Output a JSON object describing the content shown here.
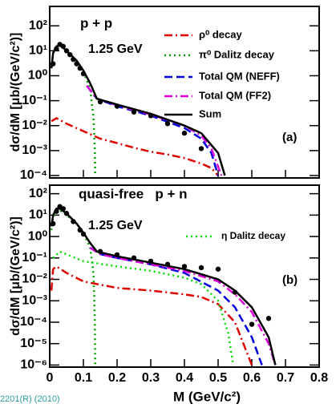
{
  "chart_data": [
    {
      "type": "line",
      "label": "(a)",
      "texts": [
        "p + p",
        "1.25 GeV"
      ],
      "ylabel": "dσ/dM [μb/(GeV/c²)]",
      "log_y": true,
      "xlim": [
        0,
        0.8
      ],
      "ylim": [
        8e-05,
        600
      ],
      "yticks": [
        {
          "value": 0.0001,
          "label": "10⁻⁴"
        },
        {
          "value": 0.001,
          "label": "10⁻³"
        },
        {
          "value": 0.01,
          "label": "10⁻²"
        },
        {
          "value": 0.1,
          "label": "10⁻¹"
        },
        {
          "value": 1,
          "label": "10⁰"
        },
        {
          "value": 10,
          "label": "10¹"
        },
        {
          "value": 100,
          "label": "10²"
        }
      ],
      "series": [
        {
          "name": "ρ⁰ decay",
          "color": "#e00000",
          "style": "dashdot",
          "x": [
            0.005,
            0.02,
            0.05,
            0.1,
            0.15,
            0.2,
            0.25,
            0.3,
            0.35,
            0.4,
            0.45,
            0.48,
            0.5
          ],
          "values": [
            0.015,
            0.02,
            0.012,
            0.006,
            0.003,
            0.002,
            0.0013,
            0.0009,
            0.0007,
            0.0005,
            0.0003,
            0.0002,
            0.0001
          ]
        },
        {
          "name": "π⁰ Dalitz decay",
          "color": "#00a000",
          "style": "dotted",
          "x": [
            0.005,
            0.01,
            0.02,
            0.03,
            0.05,
            0.08,
            0.1,
            0.12,
            0.13,
            0.134,
            0.135
          ],
          "values": [
            2,
            8,
            15,
            17,
            10,
            4,
            1.5,
            0.3,
            0.02,
            0.001,
            0.0001
          ]
        },
        {
          "name": "Total QM (NEFF)",
          "color": "#0000e0",
          "style": "dashed",
          "x": [
            0.11,
            0.14,
            0.2,
            0.3,
            0.4,
            0.45,
            0.48,
            0.5
          ],
          "values": [
            0.4,
            0.12,
            0.06,
            0.025,
            0.008,
            0.003,
            0.0008,
            0.0001
          ]
        },
        {
          "name": "Total QM (FF2)",
          "color": "#e000e0",
          "style": "dashdot",
          "x": [
            0.11,
            0.14,
            0.2,
            0.3,
            0.4,
            0.45,
            0.48,
            0.51
          ],
          "values": [
            0.4,
            0.12,
            0.065,
            0.028,
            0.01,
            0.004,
            0.0012,
            0.0001
          ]
        },
        {
          "name": "Sum",
          "color": "#000000",
          "style": "solid",
          "x": [
            0.005,
            0.01,
            0.02,
            0.03,
            0.05,
            0.08,
            0.1,
            0.12,
            0.14,
            0.2,
            0.3,
            0.4,
            0.45,
            0.5,
            0.52
          ],
          "values": [
            2,
            8,
            15,
            17,
            10,
            4,
            1.6,
            0.5,
            0.12,
            0.07,
            0.03,
            0.01,
            0.005,
            0.0008,
            0.0001
          ]
        }
      ],
      "points": {
        "x": [
          0.01,
          0.02,
          0.03,
          0.04,
          0.05,
          0.06,
          0.07,
          0.08,
          0.09,
          0.1,
          0.15,
          0.2,
          0.25,
          0.3,
          0.35,
          0.4,
          0.45
        ],
        "values": [
          3,
          12,
          18,
          15,
          10,
          7,
          4.5,
          3,
          2,
          1.2,
          0.09,
          0.06,
          0.035,
          0.025,
          0.012,
          0.005,
          0.0012
        ]
      }
    },
    {
      "type": "line",
      "label": "(b)",
      "texts": [
        "quasi-free   p + n",
        "1.25 GeV"
      ],
      "ylabel": "dσ/dM [μb/(GeV/c²)]",
      "xlabel": "M (GeV/c²)",
      "log_y": true,
      "xlim": [
        0,
        0.8
      ],
      "ylim": [
        8e-07,
        250
      ],
      "xticks": [
        0,
        0.1,
        0.2,
        0.3,
        0.4,
        0.5,
        0.6,
        0.7,
        0.8
      ],
      "yticks": [
        {
          "value": 1e-06,
          "label": "10⁻⁶"
        },
        {
          "value": 1e-05,
          "label": "10⁻⁵"
        },
        {
          "value": 0.0001,
          "label": "10⁻⁴"
        },
        {
          "value": 0.001,
          "label": "10⁻³"
        },
        {
          "value": 0.01,
          "label": "10⁻²"
        },
        {
          "value": 0.1,
          "label": "10⁻¹"
        },
        {
          "value": 1,
          "label": "10⁰"
        },
        {
          "value": 10,
          "label": "10¹"
        },
        {
          "value": 100,
          "label": "10²"
        }
      ],
      "series": [
        {
          "color": "#e00000",
          "style": "dashdot",
          "x": [
            0.005,
            0.01,
            0.02,
            0.05,
            0.1,
            0.2,
            0.3,
            0.4,
            0.45,
            0.5,
            0.55,
            0.6
          ],
          "values": [
            0.003,
            0.03,
            0.04,
            0.02,
            0.008,
            0.004,
            0.003,
            0.002,
            0.0015,
            0.0007,
            0.0001,
            1e-06
          ]
        },
        {
          "color": "#00a000",
          "style": "dotted",
          "x": [
            0.005,
            0.01,
            0.02,
            0.03,
            0.05,
            0.08,
            0.1,
            0.12,
            0.13,
            0.134,
            0.135
          ],
          "values": [
            2,
            8,
            15,
            17,
            10,
            4,
            1.5,
            0.3,
            0.02,
            0.0001,
            1e-06
          ]
        },
        {
          "name": "η Dalitz decay",
          "color": "#00e000",
          "style": "dotted",
          "x": [
            0.01,
            0.03,
            0.1,
            0.2,
            0.3,
            0.4,
            0.45,
            0.5,
            0.53,
            0.545
          ],
          "values": [
            0.1,
            0.2,
            0.07,
            0.04,
            0.025,
            0.012,
            0.006,
            0.001,
            3e-05,
            1e-06
          ]
        },
        {
          "color": "#0000e0",
          "style": "dashed",
          "x": [
            0.12,
            0.15,
            0.2,
            0.3,
            0.4,
            0.5,
            0.55,
            0.6,
            0.63
          ],
          "values": [
            0.3,
            0.15,
            0.1,
            0.05,
            0.02,
            0.003,
            0.0005,
            2e-05,
            1e-06
          ]
        },
        {
          "color": "#e000e0",
          "style": "dashdot",
          "x": [
            0.12,
            0.15,
            0.2,
            0.3,
            0.4,
            0.5,
            0.55,
            0.6,
            0.65,
            0.67
          ],
          "values": [
            0.3,
            0.15,
            0.1,
            0.05,
            0.025,
            0.008,
            0.002,
            0.0003,
            1e-05,
            1e-06
          ]
        },
        {
          "color": "#000000",
          "style": "solid",
          "x": [
            0.005,
            0.01,
            0.02,
            0.03,
            0.05,
            0.08,
            0.1,
            0.12,
            0.14,
            0.2,
            0.3,
            0.4,
            0.5,
            0.55,
            0.6,
            0.65,
            0.67
          ],
          "values": [
            3,
            10,
            20,
            20,
            12,
            4,
            1.5,
            0.5,
            0.2,
            0.12,
            0.06,
            0.03,
            0.01,
            0.003,
            0.0005,
            2e-05,
            1e-06
          ]
        }
      ],
      "points": {
        "x": [
          0.01,
          0.02,
          0.03,
          0.04,
          0.05,
          0.07,
          0.09,
          0.1,
          0.15,
          0.2,
          0.25,
          0.3,
          0.35,
          0.4,
          0.45,
          0.5,
          0.55,
          0.6,
          0.65
        ],
        "values": [
          4,
          15,
          25,
          20,
          12,
          5,
          2,
          1.3,
          0.2,
          0.14,
          0.1,
          0.07,
          0.05,
          0.04,
          0.035,
          0.03,
          0.0025,
          8e-05,
          0.00015
        ]
      },
      "footnote": "2201(R) (2010)"
    }
  ]
}
